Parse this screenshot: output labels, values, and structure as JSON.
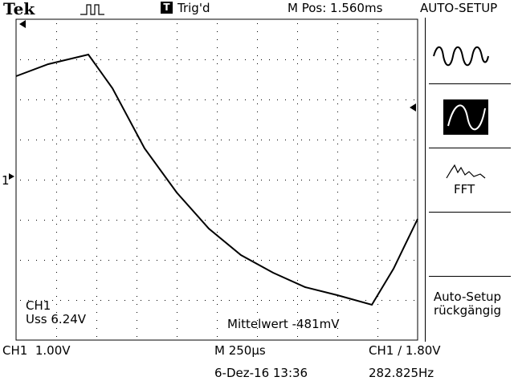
{
  "header": {
    "brand": "Tek",
    "trigger_badge": "T",
    "trigger_status": "Trig'd",
    "m_pos": "M Pos: 1.560ms",
    "menu_title": "AUTO-SETUP"
  },
  "side_menu": {
    "options": [
      {
        "icon": "multi-cycle-sine-icon",
        "selected": false
      },
      {
        "icon": "single-cycle-sine-icon",
        "selected": true
      },
      {
        "icon": "fft-spectrum-icon",
        "label": "FFT",
        "selected": false
      }
    ],
    "undo_line1": "Auto-Setup",
    "undo_line2": "rückgängig"
  },
  "waveform": {
    "channel_marker": "1",
    "readout_channel": "CH1",
    "readout_vpp": "Uss 6.24V",
    "mean": "Mittelwert -481mV"
  },
  "status": {
    "ch1_scale": "CH1  1.00V",
    "timebase": "M 250µs",
    "trigger": "CH1 ∕ 1.80V",
    "date_time": "6-Dez-16 13:36",
    "frequency": "282.825Hz"
  }
}
